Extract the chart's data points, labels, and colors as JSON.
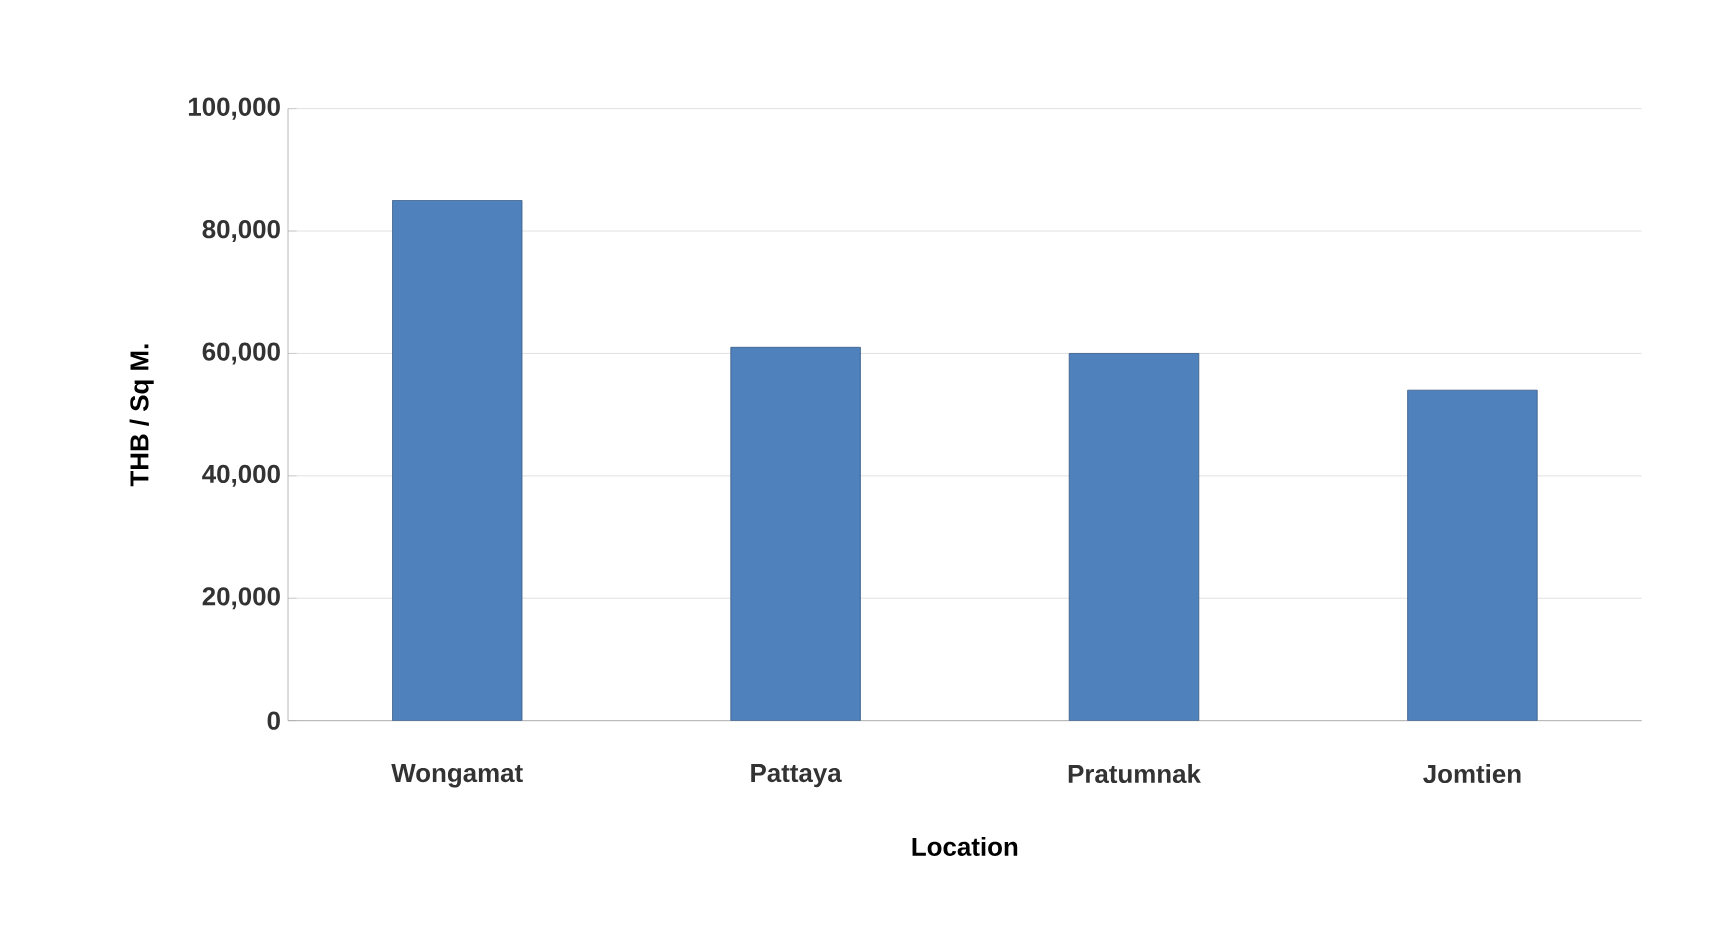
{
  "chart_data": {
    "type": "bar",
    "xlabel": "Location",
    "ylabel": "THB / Sq M.",
    "categories": [
      "Wongamat",
      "Pattaya",
      "Pratumnak",
      "Jomtien"
    ],
    "values": [
      85000,
      61000,
      60000,
      54000
    ],
    "color": "#4f81bd",
    "ylim": [
      0,
      100000
    ],
    "yticks": [
      {
        "value": 0,
        "label": "0"
      },
      {
        "value": 20000,
        "label": "20,000"
      },
      {
        "value": 40000,
        "label": "40,000"
      },
      {
        "value": 60000,
        "label": "60,000"
      },
      {
        "value": 80000,
        "label": "80,000"
      },
      {
        "value": 100000,
        "label": "100,000"
      }
    ],
    "grid": "y"
  }
}
